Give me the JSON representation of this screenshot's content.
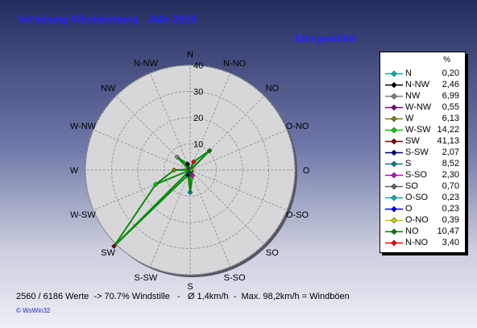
{
  "header": {
    "title": "Verteilung Windrichtung   Jahr 2019",
    "location": "Ettingen/Eifel"
  },
  "chart_data": {
    "type": "radar",
    "title": "Verteilung Windrichtung   Jahr 2019",
    "unit": "%",
    "rmax": 40,
    "rticks": [
      10,
      20,
      30,
      40
    ],
    "directions": [
      "N",
      "N-NO",
      "NO",
      "O-NO",
      "O",
      "O-SO",
      "SO",
      "S-SO",
      "S",
      "S-SW",
      "SW",
      "W-SW",
      "W",
      "W-NW",
      "NW",
      "N-NW"
    ],
    "series": [
      {
        "label": "N",
        "value": "0,20",
        "v": 0.2,
        "color": "#00b0b0"
      },
      {
        "label": "N-NW",
        "value": "2,46",
        "v": 2.46,
        "color": "#000000"
      },
      {
        "label": "NW",
        "value": "6,99",
        "v": 6.99,
        "color": "#808080"
      },
      {
        "label": "W-NW",
        "value": "0,55",
        "v": 0.55,
        "color": "#800080"
      },
      {
        "label": "W",
        "value": "6,13",
        "v": 6.13,
        "color": "#808000"
      },
      {
        "label": "W-SW",
        "value": "14,22",
        "v": 14.22,
        "color": "#00cc00"
      },
      {
        "label": "SW",
        "value": "41,13",
        "v": 41.13,
        "color": "#800000"
      },
      {
        "label": "S-SW",
        "value": "2,07",
        "v": 2.07,
        "color": "#000080"
      },
      {
        "label": "S",
        "value": "8,52",
        "v": 8.52,
        "color": "#008080"
      },
      {
        "label": "S-SO",
        "value": "2,30",
        "v": 2.3,
        "color": "#cc00cc"
      },
      {
        "label": "SO",
        "value": "0,70",
        "v": 0.7,
        "color": "#606060"
      },
      {
        "label": "O-SO",
        "value": "0,23",
        "v": 0.23,
        "color": "#00b0b0"
      },
      {
        "label": "O",
        "value": "0,23",
        "v": 0.23,
        "color": "#0000ff"
      },
      {
        "label": "O-NO",
        "value": "0,39",
        "v": 0.39,
        "color": "#cccc00"
      },
      {
        "label": "NO",
        "value": "10,47",
        "v": 10.47,
        "color": "#008000"
      },
      {
        "label": "N-NO",
        "value": "3,40",
        "v": 3.4,
        "color": "#ff0000"
      }
    ]
  },
  "legend": {
    "header": "%"
  },
  "footer": {
    "stats": "2560 / 6186 Werte  -> 70.7% Windstille   -   Ø 1,4km/h  -  Max. 98,2km/h = Windböen",
    "brand": "© WsWin32"
  }
}
